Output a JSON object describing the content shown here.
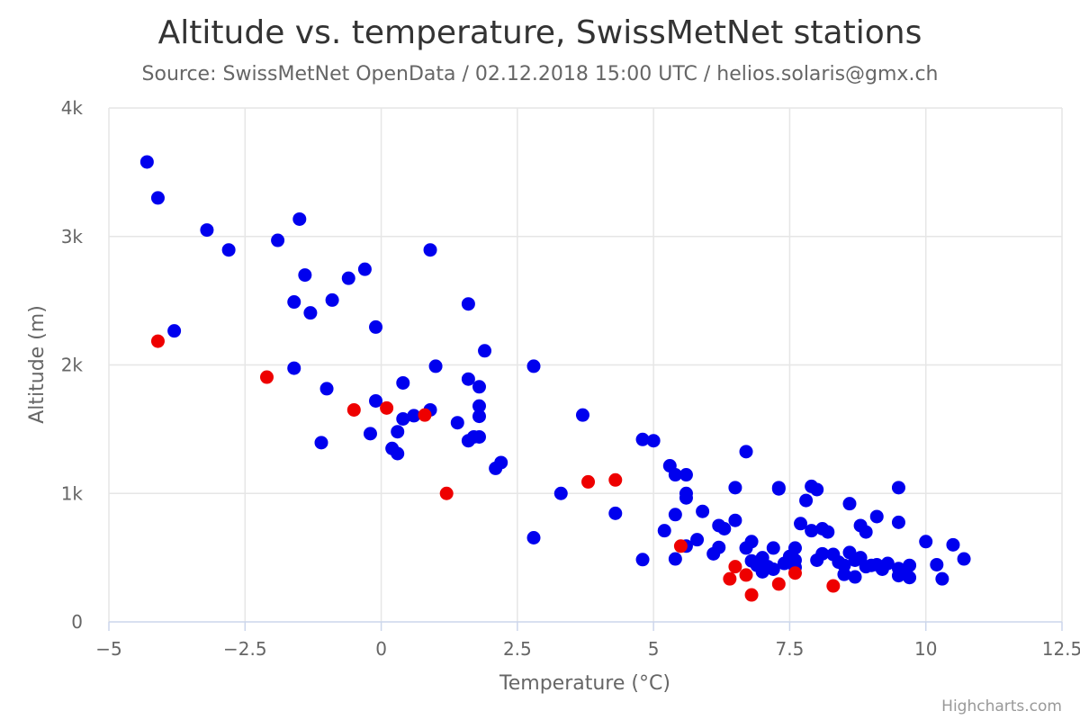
{
  "chart_data": {
    "type": "scatter",
    "title": "Altitude vs. temperature, SwissMetNet stations",
    "subtitle": "Source: SwissMetNet OpenData / 02.12.2018 15:00 UTC / helios.solaris@gmx.ch",
    "xlabel": "Temperature (°C)",
    "ylabel": "Altitude (m)",
    "xlim": [
      -5,
      12.5
    ],
    "ylim": [
      0,
      4000
    ],
    "x_ticks": [
      -5,
      -2.5,
      0,
      2.5,
      5,
      7.5,
      10,
      12.5
    ],
    "x_tick_labels": [
      "−5",
      "−2.5",
      "0",
      "2.5",
      "5",
      "7.5",
      "10",
      "12.5"
    ],
    "y_ticks": [
      0,
      1000,
      2000,
      3000,
      4000
    ],
    "y_tick_labels": [
      "0",
      "1k",
      "2k",
      "3k",
      "4k"
    ],
    "grid": true,
    "legend": "none",
    "series": [
      {
        "color": "#0000ee",
        "points": [
          [
            -4.3,
            3580
          ],
          [
            -4.1,
            3300
          ],
          [
            -3.2,
            3050
          ],
          [
            -2.8,
            2895
          ],
          [
            -3.8,
            2265
          ],
          [
            -1.9,
            2970
          ],
          [
            -1.5,
            3135
          ],
          [
            -1.4,
            2700
          ],
          [
            -1.6,
            2490
          ],
          [
            -1.3,
            2405
          ],
          [
            -0.9,
            2505
          ],
          [
            -0.6,
            2675
          ],
          [
            -0.3,
            2745
          ],
          [
            -0.1,
            2295
          ],
          [
            0.9,
            2895
          ],
          [
            -1.6,
            1975
          ],
          [
            -1.0,
            1815
          ],
          [
            -1.1,
            1395
          ],
          [
            -0.2,
            1465
          ],
          [
            -0.1,
            1720
          ],
          [
            0.2,
            1350
          ],
          [
            0.3,
            1310
          ],
          [
            0.3,
            1480
          ],
          [
            0.4,
            1580
          ],
          [
            0.6,
            1605
          ],
          [
            0.4,
            1860
          ],
          [
            0.9,
            1650
          ],
          [
            1.0,
            1990
          ],
          [
            1.4,
            1550
          ],
          [
            1.6,
            1410
          ],
          [
            1.7,
            1440
          ],
          [
            1.8,
            1440
          ],
          [
            1.8,
            1600
          ],
          [
            1.8,
            1680
          ],
          [
            1.6,
            1890
          ],
          [
            1.8,
            1830
          ],
          [
            1.9,
            2110
          ],
          [
            1.6,
            2475
          ],
          [
            2.1,
            1195
          ],
          [
            2.2,
            1240
          ],
          [
            2.8,
            1990
          ],
          [
            2.8,
            655
          ],
          [
            3.3,
            1000
          ],
          [
            3.7,
            1610
          ],
          [
            4.3,
            845
          ],
          [
            4.8,
            485
          ],
          [
            4.8,
            1420
          ],
          [
            5.0,
            1410
          ],
          [
            5.3,
            1215
          ],
          [
            5.4,
            1145
          ],
          [
            5.6,
            1145
          ],
          [
            5.6,
            1000
          ],
          [
            5.6,
            965
          ],
          [
            5.2,
            710
          ],
          [
            5.4,
            835
          ],
          [
            5.4,
            490
          ],
          [
            5.6,
            590
          ],
          [
            5.8,
            640
          ],
          [
            5.9,
            860
          ],
          [
            6.1,
            530
          ],
          [
            6.2,
            580
          ],
          [
            6.2,
            750
          ],
          [
            6.3,
            725
          ],
          [
            6.5,
            790
          ],
          [
            6.5,
            1045
          ],
          [
            6.7,
            575
          ],
          [
            6.8,
            625
          ],
          [
            6.7,
            1325
          ],
          [
            6.8,
            475
          ],
          [
            6.9,
            440
          ],
          [
            7.0,
            500
          ],
          [
            7.0,
            390
          ],
          [
            7.1,
            430
          ],
          [
            7.2,
            410
          ],
          [
            7.2,
            575
          ],
          [
            7.3,
            1045
          ],
          [
            7.3,
            1035
          ],
          [
            7.4,
            455
          ],
          [
            7.5,
            510
          ],
          [
            7.6,
            480
          ],
          [
            7.6,
            575
          ],
          [
            7.6,
            425
          ],
          [
            7.7,
            765
          ],
          [
            7.8,
            945
          ],
          [
            7.9,
            1055
          ],
          [
            7.9,
            710
          ],
          [
            8.0,
            480
          ],
          [
            8.1,
            530
          ],
          [
            8.0,
            1030
          ],
          [
            8.1,
            725
          ],
          [
            8.2,
            700
          ],
          [
            8.3,
            525
          ],
          [
            8.4,
            465
          ],
          [
            8.5,
            440
          ],
          [
            8.5,
            370
          ],
          [
            8.6,
            540
          ],
          [
            8.6,
            920
          ],
          [
            8.7,
            480
          ],
          [
            8.8,
            500
          ],
          [
            8.8,
            750
          ],
          [
            8.9,
            430
          ],
          [
            8.9,
            700
          ],
          [
            8.7,
            350
          ],
          [
            9.0,
            440
          ],
          [
            9.1,
            820
          ],
          [
            9.1,
            445
          ],
          [
            9.2,
            410
          ],
          [
            9.3,
            455
          ],
          [
            9.5,
            775
          ],
          [
            9.5,
            1045
          ],
          [
            9.5,
            415
          ],
          [
            9.5,
            360
          ],
          [
            9.6,
            400
          ],
          [
            9.7,
            440
          ],
          [
            9.7,
            345
          ],
          [
            10.0,
            625
          ],
          [
            10.2,
            445
          ],
          [
            10.3,
            335
          ],
          [
            10.5,
            600
          ],
          [
            10.7,
            490
          ]
        ]
      },
      {
        "color": "#ee0000",
        "points": [
          [
            -4.1,
            2185
          ],
          [
            -2.1,
            1905
          ],
          [
            -0.5,
            1650
          ],
          [
            0.1,
            1665
          ],
          [
            0.8,
            1610
          ],
          [
            1.2,
            1000
          ],
          [
            3.8,
            1090
          ],
          [
            4.3,
            1105
          ],
          [
            5.5,
            590
          ],
          [
            6.4,
            335
          ],
          [
            6.5,
            430
          ],
          [
            6.7,
            365
          ],
          [
            6.8,
            210
          ],
          [
            7.3,
            295
          ],
          [
            7.6,
            380
          ],
          [
            8.3,
            280
          ]
        ]
      }
    ],
    "credits": "Highcharts.com"
  }
}
